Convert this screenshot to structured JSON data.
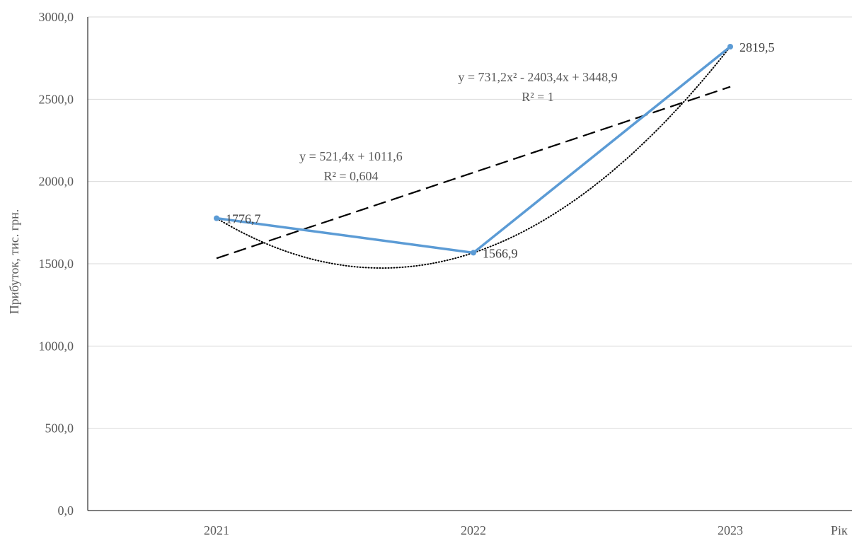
{
  "chart_data": {
    "type": "line",
    "categories": [
      "2021",
      "2022",
      "2023"
    ],
    "series": [
      {
        "values": [
          1776.7,
          1566.9,
          2819.5
        ],
        "labels": [
          "1776,7",
          "1566,9",
          "2819,5"
        ],
        "color": "#5b9bd5"
      }
    ],
    "ylabel": "Прибуток, тис. грн.",
    "xlabel": "Рік",
    "ylim": [
      0,
      3000
    ],
    "yticks": [
      0,
      500,
      1000,
      1500,
      2000,
      2500,
      3000
    ],
    "ytick_labels": [
      "0,0",
      "500,0",
      "1000,0",
      "1500,0",
      "2000,0",
      "2500,0",
      "3000,0"
    ],
    "grid": true,
    "trendlines": [
      {
        "kind": "linear",
        "style": "dashed",
        "coefficients": [
          521.4,
          1011.6
        ],
        "equation": "y = 521,4x + 1011,6",
        "r2": "R² = 0,604"
      },
      {
        "kind": "polynomial",
        "style": "dotted",
        "coefficients": [
          731.2,
          -2403.4,
          3448.9
        ],
        "equation": "y = 731,2x² - 2403,4x + 3448,9",
        "r2": "R² = 1"
      }
    ]
  }
}
